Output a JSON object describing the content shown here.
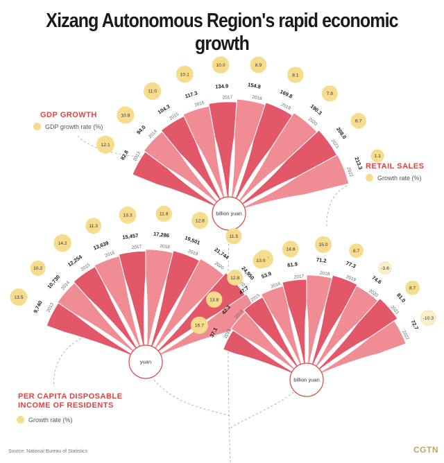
{
  "title": "Xizang Autonomous Region's rapid economic growth",
  "source": "Source: National Bureau of Statistics",
  "logo": "CGTN",
  "colors": {
    "fan_dark": "#e25868",
    "fan_light": "#f08c93",
    "bubble": "#f7dc8e",
    "accent": "#e0413e",
    "connector": "#aaaaaa"
  },
  "chart_data": [
    {
      "type": "bar",
      "id": "gdp",
      "title": "GDP GROWTH",
      "legend": "GDP growth rate (%)",
      "unit_label": "billion yuan",
      "categories": [
        "2013",
        "2014",
        "2015",
        "2016",
        "2017",
        "2018",
        "2019",
        "2020",
        "2021",
        "2022"
      ],
      "series": [
        {
          "values": [
            "82.8",
            "94.0",
            "104.3",
            "117.3",
            "134.9",
            "154.8",
            "169.8",
            "190.3",
            "208.0",
            "213.3"
          ]
        },
        {
          "name": "GDP growth rate (%)",
          "values": [
            "12.1",
            "10.8",
            "11.0",
            "10.1",
            "10.0",
            "8.9",
            "8.1",
            "7.8",
            "6.7",
            "1.1"
          ]
        }
      ]
    },
    {
      "type": "bar",
      "id": "income",
      "title": "PER CAPITA DISPOSABLE INCOME OF RESIDENTS",
      "title_lines": [
        "PER CAPITA DISPOSABLE",
        "INCOME OF RESIDENTS"
      ],
      "legend": "Growth rate (%)",
      "unit_label": "yuan",
      "categories": [
        "2013",
        "2014",
        "2015",
        "2016",
        "2017",
        "2018",
        "2019",
        "2020",
        "2021",
        "2022"
      ],
      "series": [
        {
          "values": [
            "9,740",
            "10,730",
            "12,254",
            "13,639",
            "15,457",
            "17,286",
            "19,501",
            "21,744",
            "24,950",
            "26,675"
          ]
        },
        {
          "name": "Growth rate (%)",
          "values": [
            "13.5",
            "10.2",
            "14.2",
            "11.3",
            "13.3",
            "11.8",
            "12.8",
            "11.5",
            "14.7",
            "6.9"
          ]
        }
      ]
    },
    {
      "type": "bar",
      "id": "retail",
      "title": "RETAIL SALES",
      "legend": "Growth rate (%)",
      "unit_label": "billion yuan",
      "categories": [
        "2013",
        "2014",
        "2015",
        "2016",
        "2017",
        "2018",
        "2019",
        "2020",
        "2021",
        "2022"
      ],
      "series": [
        {
          "values": [
            "37.1",
            "42.3",
            "47.7",
            "53.9",
            "61.9",
            "71.2",
            "77.3",
            "74.6",
            "81.0",
            "72.7"
          ]
        },
        {
          "name": "Growth rate (%)",
          "values": [
            "16.7",
            "13.8",
            "12.8",
            "13.0",
            "14.8",
            "15.0",
            "8.7",
            "-3.6",
            "8.7",
            "-10.3"
          ]
        }
      ]
    }
  ]
}
